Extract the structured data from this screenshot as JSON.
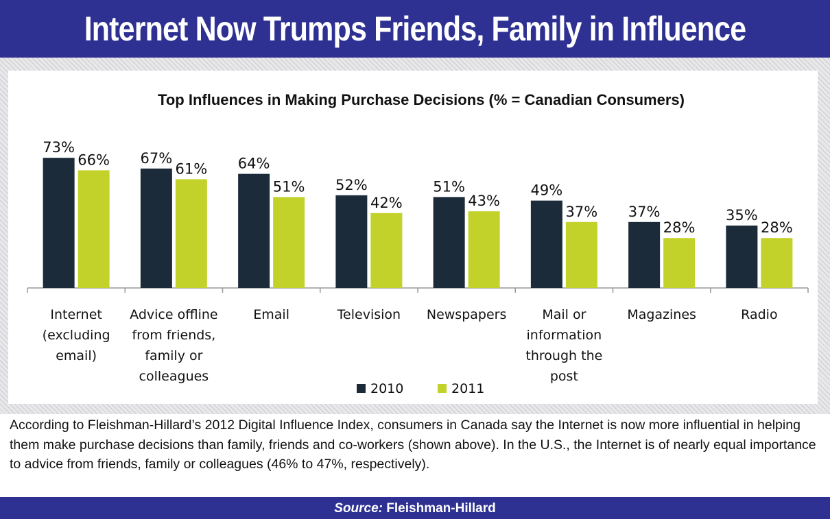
{
  "header": {
    "title": "Internet Now Trumps Friends, Family in Influence"
  },
  "chart_data": {
    "type": "bar",
    "title": "Top Influences in Making Purchase Decisions (% = Canadian Consumers)",
    "categories": [
      [
        "Internet",
        "(excluding",
        "email)"
      ],
      [
        "Advice offline",
        "from friends,",
        "family or",
        "colleagues"
      ],
      [
        "Email"
      ],
      [
        "Television"
      ],
      [
        "Newspapers"
      ],
      [
        "Mail or",
        "information",
        "through the",
        "post"
      ],
      [
        "Magazines"
      ],
      [
        "Radio"
      ]
    ],
    "series": [
      {
        "name": "2010",
        "values": [
          73,
          67,
          64,
          52,
          51,
          49,
          37,
          35
        ],
        "color": "#1c2b3a"
      },
      {
        "name": "2011",
        "values": [
          66,
          61,
          51,
          42,
          43,
          37,
          28,
          28
        ],
        "color": "#c2d22a"
      }
    ],
    "value_suffix": "%",
    "ylim": [
      0,
      80
    ],
    "legend": "bottom",
    "xlabel": "",
    "ylabel": ""
  },
  "caption": "According to Fleishman-Hillard’s 2012 Digital Influence Index, consumers in Canada say the Internet is now more influential in helping them make purchase decisions than family, friends and co-workers (shown above). In the U.S., the Internet is of nearly equal importance to advice from friends, family or colleagues (46% to 47%, respectively).",
  "source": {
    "label": "Source:",
    "text": "Fleishman-Hillard"
  },
  "colors": {
    "frame": "#2e3192",
    "bar_2010": "#1c2b3a",
    "bar_2011": "#c2d22a"
  }
}
